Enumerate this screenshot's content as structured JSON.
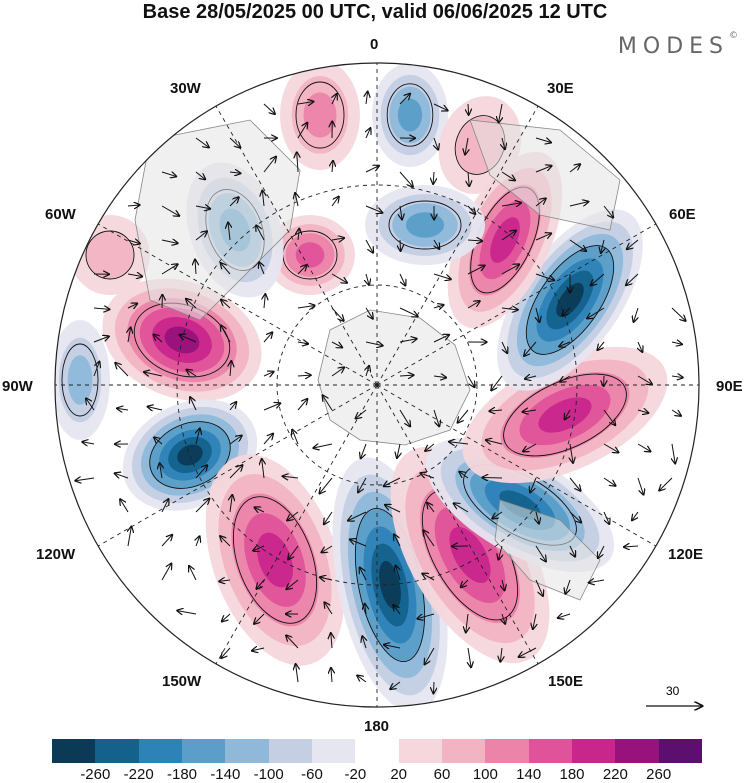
{
  "title": "Base 28/05/2025 00 UTC, valid 06/06/2025 12 UTC",
  "brand": "MODES",
  "brand_mark": "©",
  "lon_labels": {
    "n": "0",
    "e30": "30E",
    "e60": "60E",
    "e90": "90E",
    "e120": "120E",
    "e150": "150E",
    "s": "180",
    "w150": "150W",
    "w120": "120W",
    "w90": "90W",
    "w60": "60W",
    "w30": "30W"
  },
  "ref_vector": "30",
  "colorbar": {
    "ticks": [
      "-260",
      "-220",
      "-180",
      "-140",
      "-100",
      "-60",
      "-20",
      "20",
      "60",
      "100",
      "140",
      "180",
      "220",
      "260"
    ],
    "colors": [
      "#0b3a57",
      "#14618c",
      "#2d83b7",
      "#5a9ec9",
      "#8fb8d9",
      "#c4cfe4",
      "#e6e6f0",
      "#ffffff",
      "#f6d7dc",
      "#f2b4c2",
      "#ec84aa",
      "#e0539a",
      "#c8268c",
      "#97127c",
      "#5c0f6e"
    ]
  },
  "legend_colors": {
    "land": "#e4e4e4",
    "coast": "#888888"
  }
}
